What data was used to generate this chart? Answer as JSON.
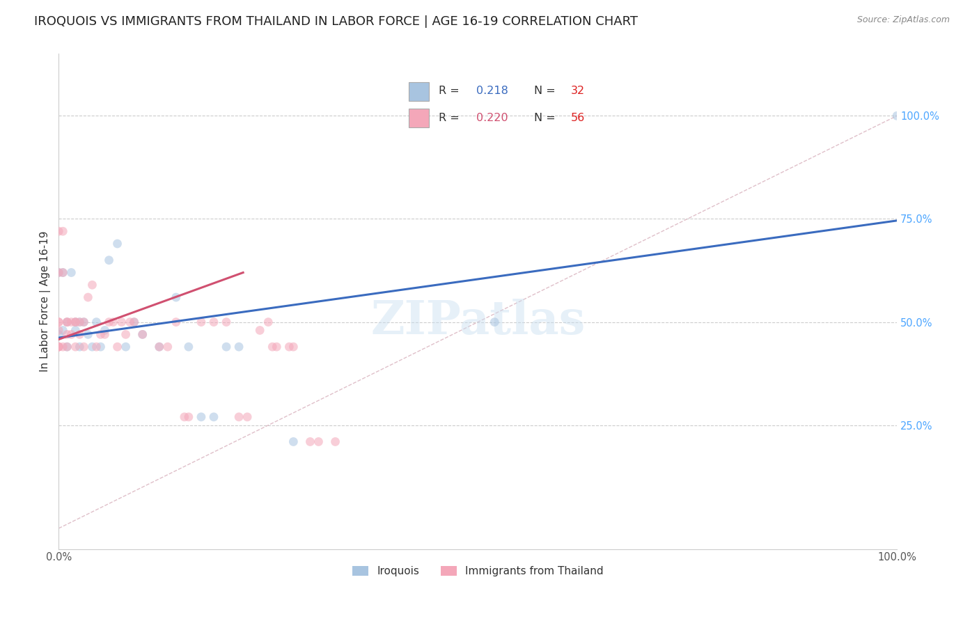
{
  "title": "IROQUOIS VS IMMIGRANTS FROM THAILAND IN LABOR FORCE | AGE 16-19 CORRELATION CHART",
  "source": "Source: ZipAtlas.com",
  "ylabel": "In Labor Force | Age 16-19",
  "xlim": [
    0.0,
    1.0
  ],
  "ylim": [
    -0.05,
    1.15
  ],
  "xticks": [
    0.0,
    1.0
  ],
  "xtick_labels": [
    "0.0%",
    "100.0%"
  ],
  "yticks_right": [
    0.25,
    0.5,
    0.75,
    1.0
  ],
  "ytick_labels_right": [
    "25.0%",
    "50.0%",
    "75.0%",
    "100.0%"
  ],
  "iroquois_color": "#a8c4e0",
  "thailand_color": "#f4a7b9",
  "iroquois_R": 0.218,
  "iroquois_N": 32,
  "thailand_R": 0.22,
  "thailand_N": 56,
  "iroquois_line_color": "#3a6bbf",
  "thailand_line_color": "#d05070",
  "diagonal_color": "#d8b0bc",
  "watermark": "ZIPatlas",
  "iroquois_x": [
    0.0,
    0.0,
    0.005,
    0.005,
    0.01,
    0.01,
    0.015,
    0.02,
    0.02,
    0.025,
    0.025,
    0.03,
    0.035,
    0.04,
    0.045,
    0.05,
    0.055,
    0.06,
    0.07,
    0.08,
    0.09,
    0.1,
    0.12,
    0.14,
    0.155,
    0.17,
    0.185,
    0.2,
    0.215,
    0.28,
    0.52,
    1.0
  ],
  "iroquois_y": [
    0.47,
    0.62,
    0.48,
    0.62,
    0.44,
    0.5,
    0.62,
    0.48,
    0.5,
    0.44,
    0.5,
    0.5,
    0.47,
    0.44,
    0.5,
    0.44,
    0.48,
    0.65,
    0.69,
    0.44,
    0.5,
    0.47,
    0.44,
    0.56,
    0.44,
    0.27,
    0.27,
    0.44,
    0.44,
    0.21,
    0.5,
    1.0
  ],
  "thailand_x": [
    0.0,
    0.0,
    0.0,
    0.0,
    0.0,
    0.0,
    0.0,
    0.0,
    0.005,
    0.005,
    0.005,
    0.01,
    0.01,
    0.01,
    0.01,
    0.015,
    0.015,
    0.02,
    0.02,
    0.02,
    0.025,
    0.025,
    0.03,
    0.03,
    0.035,
    0.04,
    0.045,
    0.05,
    0.055,
    0.06,
    0.065,
    0.07,
    0.075,
    0.08,
    0.085,
    0.09,
    0.1,
    0.12,
    0.13,
    0.14,
    0.15,
    0.155,
    0.17,
    0.185,
    0.2,
    0.215,
    0.225,
    0.24,
    0.25,
    0.255,
    0.26,
    0.275,
    0.28,
    0.3,
    0.31,
    0.33
  ],
  "thailand_y": [
    0.44,
    0.44,
    0.44,
    0.48,
    0.5,
    0.5,
    0.62,
    0.72,
    0.44,
    0.62,
    0.72,
    0.44,
    0.47,
    0.5,
    0.5,
    0.47,
    0.5,
    0.44,
    0.5,
    0.5,
    0.47,
    0.5,
    0.44,
    0.5,
    0.56,
    0.59,
    0.44,
    0.47,
    0.47,
    0.5,
    0.5,
    0.44,
    0.5,
    0.47,
    0.5,
    0.5,
    0.47,
    0.44,
    0.44,
    0.5,
    0.27,
    0.27,
    0.5,
    0.5,
    0.5,
    0.27,
    0.27,
    0.48,
    0.5,
    0.44,
    0.44,
    0.44,
    0.44,
    0.21,
    0.21,
    0.21
  ],
  "background_color": "#ffffff",
  "grid_color": "#cccccc",
  "title_fontsize": 13,
  "axis_label_fontsize": 11,
  "tick_fontsize": 10.5,
  "marker_size": 85,
  "marker_alpha": 0.55,
  "right_tick_color": "#4da6ff",
  "iroquois_line_x": [
    0.0,
    1.0
  ],
  "iroquois_line_y": [
    0.462,
    0.746
  ],
  "thailand_line_x": [
    0.0,
    0.22
  ],
  "thailand_line_y": [
    0.458,
    0.62
  ]
}
